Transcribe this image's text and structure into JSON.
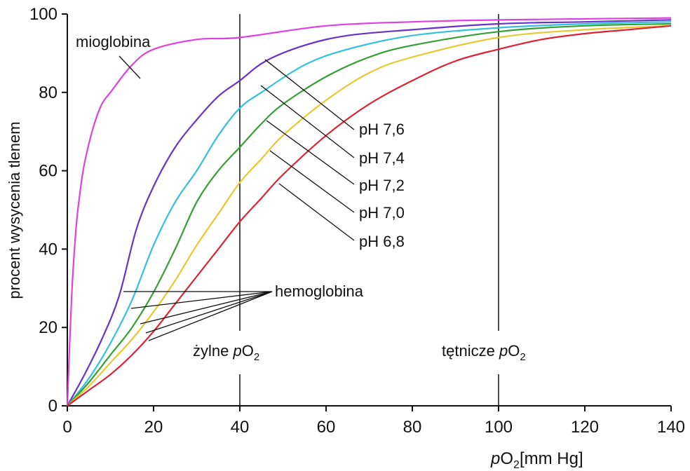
{
  "chart_data": {
    "type": "line",
    "xlabel_prefix": "p",
    "xlabel_sub": "2",
    "xlabel_O": "O",
    "xlabel_unit": "[mm Hg]",
    "ylabel": "procent wysycenia tlenem",
    "xlim": [
      0,
      140
    ],
    "ylim": [
      0,
      100
    ],
    "x_ticks": [
      "0",
      "20",
      "40",
      "60",
      "80",
      "100",
      "120",
      "140"
    ],
    "y_ticks": [
      "0",
      "20",
      "40",
      "60",
      "80",
      "100"
    ],
    "grid": false,
    "vlines": [
      {
        "x": 40,
        "label_text": "żylne ",
        "label_p": "p",
        "label_O": "O",
        "label_sub": "2"
      },
      {
        "x": 100,
        "label_text": "tętnicze ",
        "label_p": "p",
        "label_O": "O",
        "label_sub": "2"
      }
    ],
    "series": [
      {
        "name": "mioglobina",
        "color": "#e040e0",
        "points": [
          [
            0,
            0
          ],
          [
            1,
            28
          ],
          [
            2,
            45
          ],
          [
            3,
            55
          ],
          [
            4,
            62
          ],
          [
            6,
            71
          ],
          [
            8,
            77
          ],
          [
            10,
            80
          ],
          [
            15,
            87
          ],
          [
            20,
            91
          ],
          [
            30,
            93.5
          ],
          [
            40,
            94
          ],
          [
            60,
            97
          ],
          [
            80,
            98
          ],
          [
            100,
            98.5
          ],
          [
            140,
            99
          ]
        ]
      },
      {
        "name": "pH 7,6",
        "color": "#6633cc",
        "points": [
          [
            0,
            0
          ],
          [
            4,
            8
          ],
          [
            8,
            17
          ],
          [
            12,
            28
          ],
          [
            16,
            45
          ],
          [
            20,
            56
          ],
          [
            25,
            66
          ],
          [
            30,
            73
          ],
          [
            35,
            79
          ],
          [
            40,
            83
          ],
          [
            46,
            88
          ],
          [
            55,
            92
          ],
          [
            65,
            94.5
          ],
          [
            80,
            96
          ],
          [
            100,
            97.5
          ],
          [
            120,
            98
          ],
          [
            140,
            98.5
          ]
        ]
      },
      {
        "name": "pH 7,4",
        "color": "#33c0e0",
        "points": [
          [
            0,
            0
          ],
          [
            5,
            7
          ],
          [
            10,
            16
          ],
          [
            15,
            27
          ],
          [
            20,
            41
          ],
          [
            25,
            52
          ],
          [
            30,
            60
          ],
          [
            35,
            69
          ],
          [
            40,
            76
          ],
          [
            45,
            80
          ],
          [
            55,
            87
          ],
          [
            65,
            91
          ],
          [
            80,
            94.5
          ],
          [
            100,
            96.5
          ],
          [
            120,
            97.5
          ],
          [
            140,
            98
          ]
        ]
      },
      {
        "name": "pH 7,2",
        "color": "#33a033",
        "points": [
          [
            0,
            0
          ],
          [
            5,
            6
          ],
          [
            10,
            13
          ],
          [
            15,
            20
          ],
          [
            20,
            29
          ],
          [
            25,
            40
          ],
          [
            30,
            52
          ],
          [
            35,
            60
          ],
          [
            40,
            66
          ],
          [
            45,
            72
          ],
          [
            50,
            77
          ],
          [
            60,
            84
          ],
          [
            70,
            89
          ],
          [
            80,
            92
          ],
          [
            100,
            95.5
          ],
          [
            120,
            97
          ],
          [
            140,
            97.5
          ]
        ]
      },
      {
        "name": "pH 7,0",
        "color": "#e8c830",
        "points": [
          [
            0,
            0
          ],
          [
            5,
            5
          ],
          [
            10,
            11
          ],
          [
            15,
            17
          ],
          [
            20,
            24
          ],
          [
            25,
            32
          ],
          [
            30,
            41
          ],
          [
            35,
            49
          ],
          [
            40,
            57
          ],
          [
            45,
            63
          ],
          [
            50,
            69
          ],
          [
            60,
            78
          ],
          [
            70,
            85
          ],
          [
            80,
            89
          ],
          [
            100,
            94
          ],
          [
            120,
            96
          ],
          [
            140,
            97
          ]
        ]
      },
      {
        "name": "pH 6,8",
        "color": "#dd2233",
        "points": [
          [
            0,
            0
          ],
          [
            5,
            4
          ],
          [
            10,
            8
          ],
          [
            15,
            13
          ],
          [
            20,
            19
          ],
          [
            25,
            26
          ],
          [
            30,
            33
          ],
          [
            35,
            40
          ],
          [
            40,
            47
          ],
          [
            45,
            53
          ],
          [
            50,
            59
          ],
          [
            60,
            69
          ],
          [
            70,
            77
          ],
          [
            80,
            83
          ],
          [
            90,
            88
          ],
          [
            100,
            91
          ],
          [
            110,
            93.5
          ],
          [
            120,
            95
          ],
          [
            130,
            96
          ],
          [
            140,
            97
          ]
        ]
      }
    ],
    "annotations": {
      "mioglobina": "mioglobina",
      "hemoglobina": "hemoglobina",
      "ph_labels": [
        "pH 7,6",
        "pH 7,4",
        "pH 7,2",
        "pH 7,0",
        "pH 6,8"
      ]
    }
  }
}
